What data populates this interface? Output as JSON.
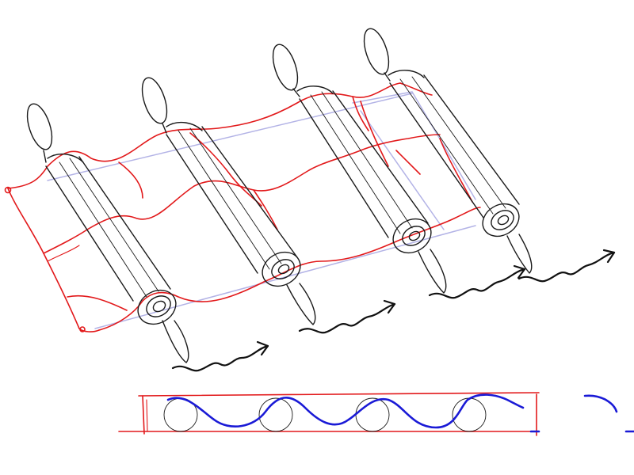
{
  "figure": {
    "description_items": [
      "cloth",
      "rollers",
      "motion-arrows",
      "cross-section"
    ],
    "colors": {
      "cloth": "#e2191b",
      "roller": "#1a1a1a",
      "guide": "#b3b3e6",
      "wave": "#1a1ad6",
      "arrow": "#111111"
    },
    "roller_count": 4,
    "arrow_count": 4,
    "section_circle_count": 4
  }
}
